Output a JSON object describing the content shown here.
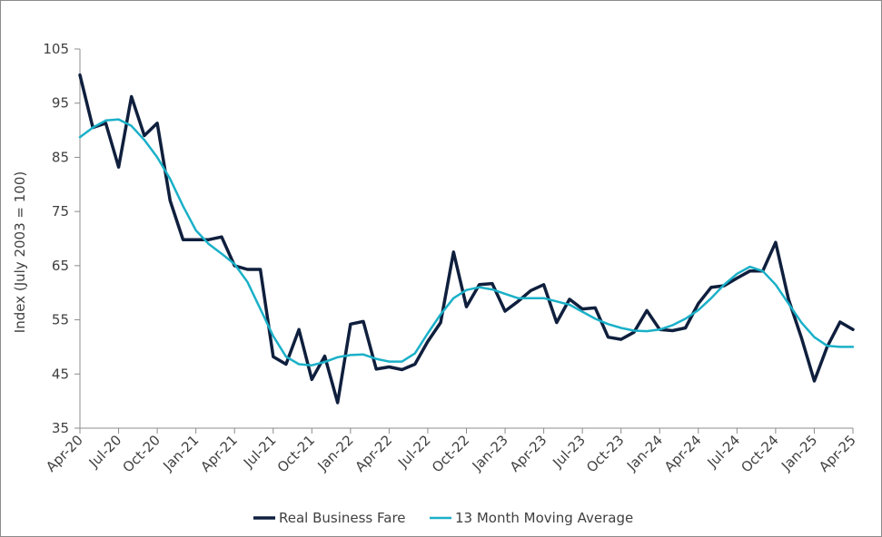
{
  "chart_data": {
    "type": "line",
    "ylabel": "Index (July 2003 = 100)",
    "ylim": [
      35,
      105
    ],
    "yticks": [
      35,
      45,
      55,
      65,
      75,
      85,
      95,
      105
    ],
    "x_tick_labels": [
      "Apr-20",
      "Jul-20",
      "Oct-20",
      "Jan-21",
      "Apr-21",
      "Jul-21",
      "Oct-21",
      "Jan-22",
      "Apr-22",
      "Jul-22",
      "Oct-22",
      "Jan-23",
      "Apr-23",
      "Jul-23",
      "Oct-23",
      "Jan-24",
      "Apr-24",
      "Jul-24",
      "Oct-24",
      "Jan-25",
      "Apr-25"
    ],
    "x_tick_step_months": 3,
    "legend_position": "bottom",
    "series": [
      {
        "name": "Real Business Fare",
        "color": "#0f1f3d",
        "values": [
          100.2,
          90.5,
          91.3,
          83.2,
          96.2,
          89.0,
          91.3,
          77.0,
          69.8,
          69.8,
          69.8,
          70.3,
          65.0,
          64.3,
          64.3,
          48.2,
          46.8,
          53.2,
          44.0,
          48.3,
          39.7,
          54.2,
          54.7,
          45.9,
          46.3,
          45.8,
          46.8,
          51.0,
          54.5,
          67.5,
          57.4,
          61.5,
          61.7,
          56.6,
          58.4,
          60.4,
          61.5,
          54.5,
          58.8,
          57.0,
          57.2,
          51.8,
          51.4,
          52.7,
          56.7,
          53.2,
          53.0,
          53.5,
          58.0,
          61.0,
          61.3,
          62.7,
          64.0,
          64.0,
          69.3,
          58.8,
          51.7,
          43.7,
          50.0,
          54.6,
          53.2
        ]
      },
      {
        "name": "13 Month Moving Average",
        "color": "#1ab0c8",
        "values": [
          88.7,
          90.5,
          91.8,
          92.0,
          90.8,
          88.2,
          85.0,
          81.0,
          76.0,
          71.5,
          69.0,
          67.2,
          65.3,
          62.0,
          57.0,
          52.0,
          48.2,
          46.8,
          46.6,
          47.2,
          48.1,
          48.5,
          48.6,
          47.8,
          47.3,
          47.3,
          48.8,
          52.5,
          56.0,
          59.0,
          60.5,
          61.0,
          60.6,
          59.8,
          59.0,
          59.0,
          59.0,
          58.4,
          57.8,
          56.5,
          55.2,
          54.2,
          53.5,
          53.0,
          52.9,
          53.2,
          54.0,
          55.2,
          56.8,
          59.0,
          61.5,
          63.5,
          64.8,
          64.0,
          61.5,
          58.0,
          54.5,
          51.8,
          50.2,
          50.0,
          50.0
        ]
      }
    ]
  }
}
